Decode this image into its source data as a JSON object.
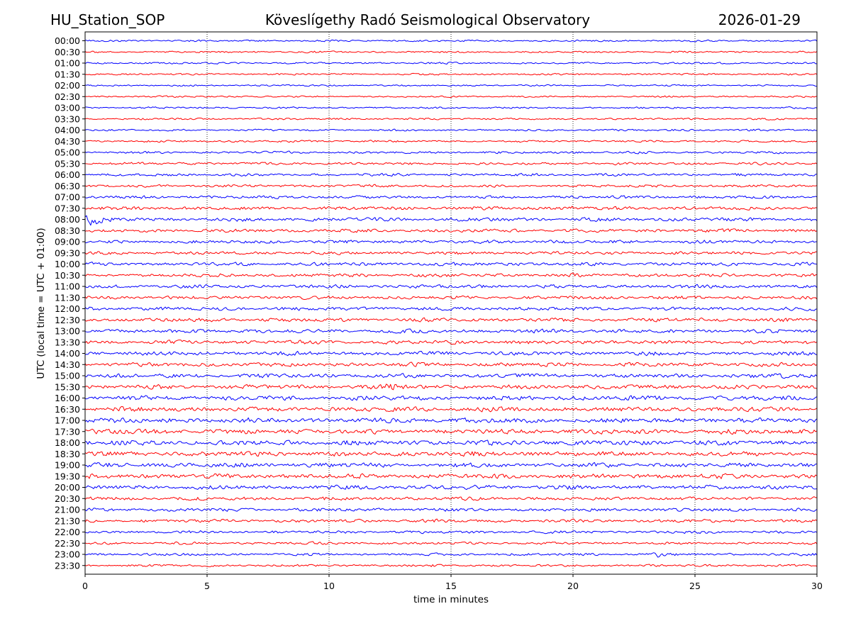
{
  "header": {
    "station": "HU_Station_SOP",
    "observatory": "Köveslígethy Radó Seismological Observatory",
    "date": "2026-01-29"
  },
  "chart_data": {
    "type": "line",
    "title": "Köveslígethy Radó Seismological Observatory",
    "xlabel": "time in minutes",
    "ylabel": "UTC (local time = UTC + 01:00)",
    "xlim": [
      0,
      30
    ],
    "xticks": [
      "0",
      "5",
      "10",
      "15",
      "20",
      "25",
      "30"
    ],
    "grid": "vertical dotted",
    "trace_colors": [
      "#0000ff",
      "#ff0000"
    ],
    "rows": [
      {
        "label": "00:00",
        "amp": 1.1
      },
      {
        "label": "00:30",
        "amp": 1.1
      },
      {
        "label": "01:00",
        "amp": 1.1
      },
      {
        "label": "01:30",
        "amp": 1.1
      },
      {
        "label": "02:00",
        "amp": 1.0
      },
      {
        "label": "02:30",
        "amp": 1.0
      },
      {
        "label": "03:00",
        "amp": 1.1
      },
      {
        "label": "03:30",
        "amp": 1.1
      },
      {
        "label": "04:00",
        "amp": 1.2
      },
      {
        "label": "04:30",
        "amp": 1.2
      },
      {
        "label": "05:00",
        "amp": 1.4
      },
      {
        "label": "05:30",
        "amp": 1.5
      },
      {
        "label": "06:00",
        "amp": 1.6
      },
      {
        "label": "06:30",
        "amp": 1.6
      },
      {
        "label": "07:00",
        "amp": 1.8
      },
      {
        "label": "07:30",
        "amp": 2.0
      },
      {
        "label": "08:00",
        "amp": 2.2
      },
      {
        "label": "08:30",
        "amp": 2.0
      },
      {
        "label": "09:00",
        "amp": 2.0
      },
      {
        "label": "09:30",
        "amp": 1.9
      },
      {
        "label": "10:00",
        "amp": 2.0
      },
      {
        "label": "10:30",
        "amp": 2.0
      },
      {
        "label": "11:00",
        "amp": 2.1
      },
      {
        "label": "11:30",
        "amp": 2.0
      },
      {
        "label": "12:00",
        "amp": 2.1
      },
      {
        "label": "12:30",
        "amp": 2.2
      },
      {
        "label": "13:00",
        "amp": 2.3
      },
      {
        "label": "13:30",
        "amp": 2.3
      },
      {
        "label": "14:00",
        "amp": 2.3
      },
      {
        "label": "14:30",
        "amp": 2.3
      },
      {
        "label": "15:00",
        "amp": 2.4
      },
      {
        "label": "15:30",
        "amp": 2.6
      },
      {
        "label": "16:00",
        "amp": 2.8
      },
      {
        "label": "16:30",
        "amp": 2.9
      },
      {
        "label": "17:00",
        "amp": 3.0
      },
      {
        "label": "17:30",
        "amp": 3.0
      },
      {
        "label": "18:00",
        "amp": 3.0
      },
      {
        "label": "18:30",
        "amp": 2.9
      },
      {
        "label": "19:00",
        "amp": 2.7
      },
      {
        "label": "19:30",
        "amp": 2.8
      },
      {
        "label": "20:00",
        "amp": 2.6
      },
      {
        "label": "20:30",
        "amp": 2.1
      },
      {
        "label": "21:00",
        "amp": 1.9
      },
      {
        "label": "21:30",
        "amp": 1.9
      },
      {
        "label": "22:00",
        "amp": 1.7
      },
      {
        "label": "22:30",
        "amp": 1.5
      },
      {
        "label": "23:00",
        "amp": 1.5
      },
      {
        "label": "23:30",
        "amp": 1.4
      }
    ],
    "events": [
      {
        "row": "07:30",
        "minute": 20.1,
        "amp": 3.0
      },
      {
        "row": "08:00",
        "minute": 0.3,
        "amp": 7.0
      },
      {
        "row": "15:00",
        "minute": 28.7,
        "amp": 3.5
      },
      {
        "row": "15:30",
        "minute": 12.5,
        "amp": 3.0
      },
      {
        "row": "23:00",
        "minute": 23.5,
        "amp": 2.5
      }
    ]
  }
}
